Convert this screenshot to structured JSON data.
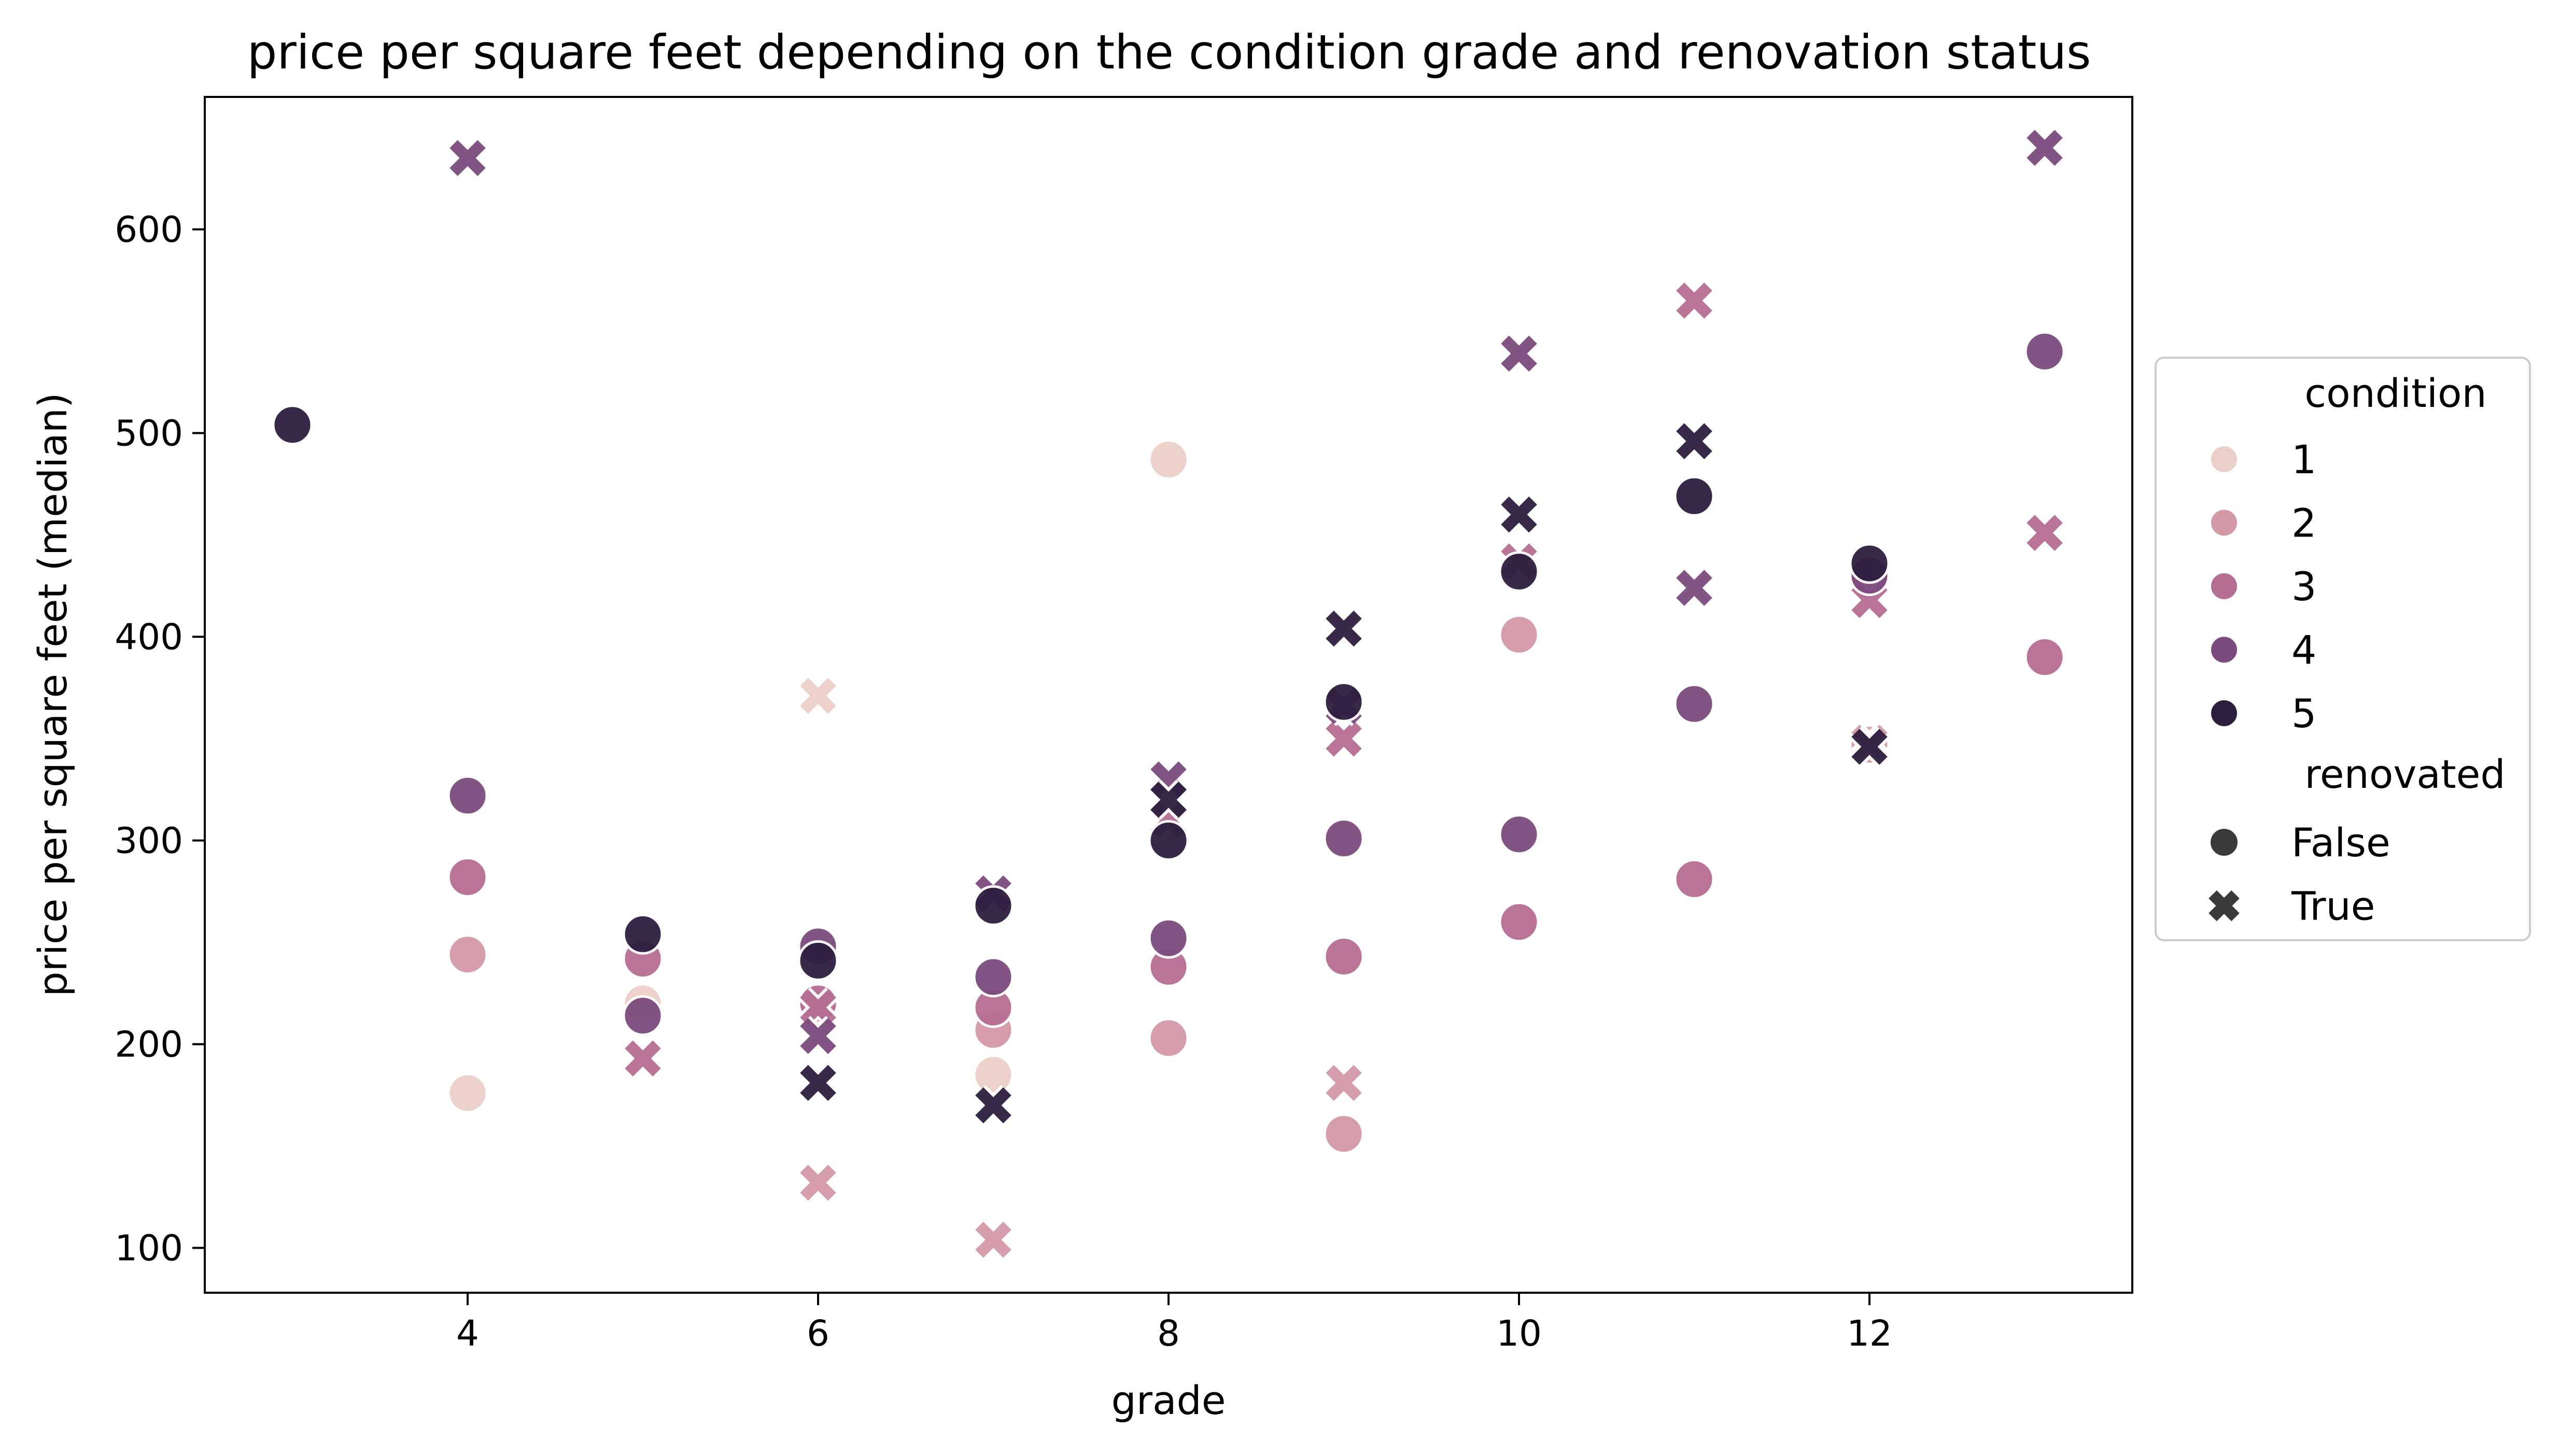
{
  "chart_data": {
    "type": "scatter",
    "title": "price per square feet depending on the condition grade and renovation status",
    "xlabel": "grade",
    "ylabel": "price per square feet (median)",
    "xlim": [
      2.5,
      13.5
    ],
    "ylim": [
      78,
      665
    ],
    "xticks": [
      4,
      6,
      8,
      10,
      12
    ],
    "yticks": [
      100,
      200,
      300,
      400,
      500,
      600
    ],
    "grid": false,
    "legend": {
      "placement": "outside-right",
      "hue_title": "condition",
      "style_title": "renovated",
      "hue_levels": [
        "1",
        "2",
        "3",
        "4",
        "5"
      ],
      "style_levels": [
        {
          "label": "False",
          "marker": "circle"
        },
        {
          "label": "True",
          "marker": "x"
        }
      ]
    },
    "colors": {
      "1": "#ebd0c9",
      "2": "#d499a6",
      "3": "#b66d92",
      "4": "#7c4b7d",
      "5": "#2d1e3e",
      "legend_marker": "#3a3a3a"
    },
    "series": [
      {
        "condition": "1",
        "renovated": "False",
        "points": [
          [
            4,
            176
          ],
          [
            5,
            220
          ],
          [
            6,
            220
          ],
          [
            7,
            185
          ],
          [
            8,
            487
          ]
        ]
      },
      {
        "condition": "1",
        "renovated": "True",
        "points": [
          [
            6,
            371
          ]
        ]
      },
      {
        "condition": "2",
        "renovated": "False",
        "points": [
          [
            4,
            244
          ],
          [
            6,
            217
          ],
          [
            7,
            207
          ],
          [
            8,
            203
          ],
          [
            9,
            156
          ],
          [
            10,
            401
          ],
          [
            12,
            347
          ]
        ]
      },
      {
        "condition": "2",
        "renovated": "True",
        "points": [
          [
            6,
            132
          ],
          [
            7,
            104
          ],
          [
            9,
            181
          ],
          [
            12,
            348
          ]
        ]
      },
      {
        "condition": "3",
        "renovated": "False",
        "points": [
          [
            4,
            282
          ],
          [
            5,
            242
          ],
          [
            6,
            220
          ],
          [
            7,
            218
          ],
          [
            8,
            238
          ],
          [
            9,
            243
          ],
          [
            10,
            260
          ],
          [
            11,
            281
          ],
          [
            12,
            428
          ],
          [
            13,
            390
          ]
        ]
      },
      {
        "condition": "3",
        "renovated": "True",
        "points": [
          [
            5,
            193
          ],
          [
            6,
            218
          ],
          [
            8,
            310
          ],
          [
            9,
            350
          ],
          [
            10,
            437
          ],
          [
            11,
            565
          ],
          [
            12,
            418
          ],
          [
            13,
            451
          ]
        ]
      },
      {
        "condition": "4",
        "renovated": "False",
        "points": [
          [
            4,
            322
          ],
          [
            5,
            214
          ],
          [
            6,
            248
          ],
          [
            7,
            233
          ],
          [
            8,
            252
          ],
          [
            9,
            301
          ],
          [
            10,
            303
          ],
          [
            11,
            367
          ],
          [
            12,
            430
          ],
          [
            13,
            540
          ]
        ]
      },
      {
        "condition": "4",
        "renovated": "True",
        "points": [
          [
            4,
            635
          ],
          [
            6,
            204
          ],
          [
            7,
            274
          ],
          [
            8,
            330
          ],
          [
            9,
            366
          ],
          [
            10,
            539
          ],
          [
            11,
            424
          ],
          [
            13,
            640
          ]
        ]
      },
      {
        "condition": "5",
        "renovated": "False",
        "points": [
          [
            3,
            504
          ],
          [
            5,
            254
          ],
          [
            6,
            241
          ],
          [
            7,
            268
          ],
          [
            8,
            300
          ],
          [
            9,
            368
          ],
          [
            10,
            432
          ],
          [
            11,
            469
          ],
          [
            12,
            436
          ]
        ]
      },
      {
        "condition": "5",
        "renovated": "True",
        "points": [
          [
            6,
            181
          ],
          [
            7,
            170
          ],
          [
            8,
            320
          ],
          [
            9,
            404
          ],
          [
            10,
            460
          ],
          [
            11,
            496
          ],
          [
            12,
            346
          ]
        ]
      }
    ]
  }
}
